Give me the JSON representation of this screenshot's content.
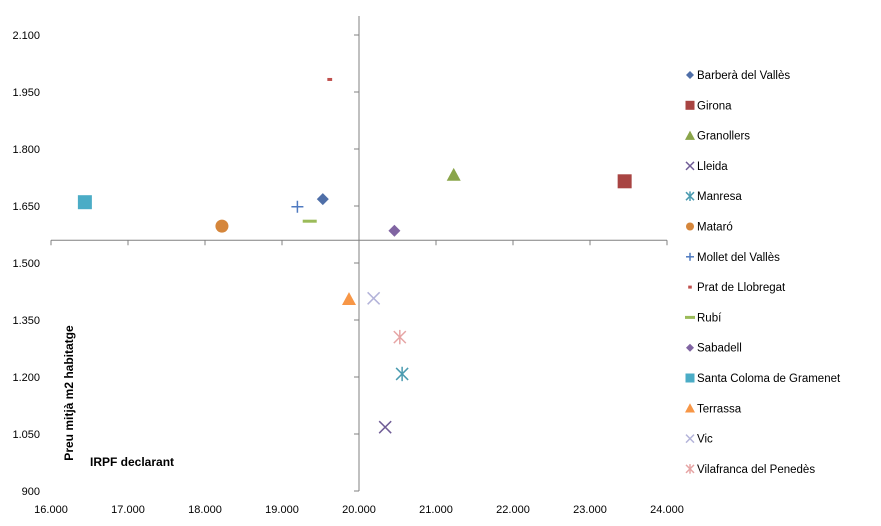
{
  "chart_data": {
    "type": "scatter",
    "title": "",
    "xlabel": "IRPF declarant",
    "ylabel": "Preu mitjà m2 habitatge",
    "xlim": [
      16000,
      24000
    ],
    "ylim": [
      900,
      2150
    ],
    "x_ticks": [
      "16.000",
      "17.000",
      "18.000",
      "19.000",
      "20.000",
      "21.000",
      "22.000",
      "23.000",
      "24.000"
    ],
    "y_ticks": [
      "900",
      "1.050",
      "1.200",
      "1.350",
      "1.500",
      "1.650",
      "1.800",
      "1.950",
      "2.100"
    ],
    "x_tick_values": [
      16000,
      17000,
      18000,
      19000,
      20000,
      21000,
      22000,
      23000,
      24000
    ],
    "y_tick_values": [
      900,
      1050,
      1200,
      1350,
      1500,
      1650,
      1800,
      1950,
      2100
    ],
    "crosshair": {
      "x": 20000,
      "y": 1560
    },
    "legend_position": "right",
    "grid": false,
    "series": [
      {
        "name": "Barberà del Vallès",
        "marker": "diamond",
        "color": "#4F6FA8",
        "x": 19530,
        "y": 1668
      },
      {
        "name": "Girona",
        "marker": "square",
        "color": "#A84442",
        "x": 23450,
        "y": 1715
      },
      {
        "name": "Granollers",
        "marker": "triangle",
        "color": "#8AA54A",
        "x": 21230,
        "y": 1732
      },
      {
        "name": "Lleida",
        "marker": "x",
        "color": "#6F5C96",
        "x": 20340,
        "y": 1068
      },
      {
        "name": "Manresa",
        "marker": "asterisk",
        "color": "#4A9BB0",
        "x": 20560,
        "y": 1208
      },
      {
        "name": "Mataró",
        "marker": "circle",
        "color": "#D5863B",
        "x": 18220,
        "y": 1597
      },
      {
        "name": "Mollet del Vallès",
        "marker": "plus",
        "color": "#4F7AC0",
        "x": 19200,
        "y": 1648
      },
      {
        "name": "Prat de Llobregat",
        "marker": "dash",
        "color": "#C0504D",
        "x": 19620,
        "y": 1983
      },
      {
        "name": "Rubí",
        "marker": "bar",
        "color": "#9BBB59",
        "x": 19360,
        "y": 1610
      },
      {
        "name": "Sabadell",
        "marker": "diamond",
        "color": "#8064A2",
        "x": 20460,
        "y": 1585
      },
      {
        "name": "Santa Coloma de Gramenet",
        "marker": "square",
        "color": "#4BACC6",
        "x": 16440,
        "y": 1660
      },
      {
        "name": "Terrassa",
        "marker": "triangle",
        "color": "#F79646",
        "x": 19870,
        "y": 1405
      },
      {
        "name": "Vic",
        "marker": "x",
        "color": "#B3B3D9",
        "x": 20190,
        "y": 1407
      },
      {
        "name": "Vilafranca del Penedès",
        "marker": "asterisk",
        "color": "#E6A4A4",
        "x": 20530,
        "y": 1305
      }
    ]
  }
}
